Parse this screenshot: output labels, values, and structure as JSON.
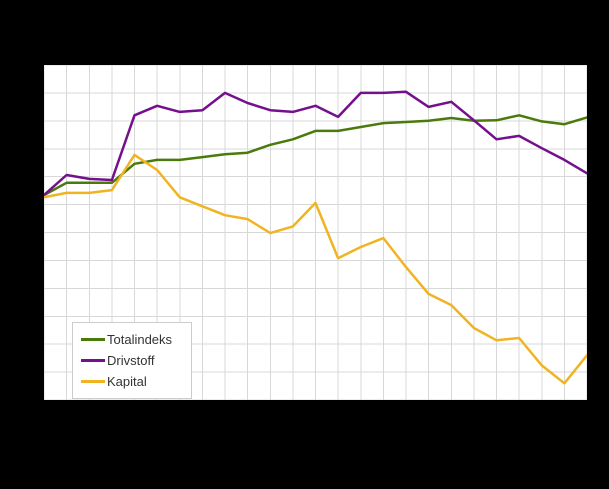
{
  "chart_data": {
    "type": "line",
    "title": "",
    "x_count": 25,
    "x_tick_labels_visible": false,
    "y_tick_labels_visible": false,
    "grid": true,
    "grid_color": "#d8d8d8",
    "plot_background": "#ffffff",
    "page_background": "#000000",
    "legend_position": "inside-bottom-left",
    "ylim": [
      63.3,
      123.3
    ],
    "series": [
      {
        "name": "Totalindeks",
        "color": "#4b7a0c",
        "values": [
          100.0,
          102.2,
          102.2,
          102.2,
          105.6,
          106.3,
          106.3,
          106.8,
          107.3,
          107.6,
          109.0,
          110.0,
          111.5,
          111.5,
          112.2,
          112.9,
          113.1,
          113.3,
          113.8,
          113.3,
          113.4,
          114.3,
          113.2,
          112.7,
          113.9
        ]
      },
      {
        "name": "Drivstoff",
        "color": "#74108c",
        "values": [
          100.0,
          103.6,
          102.9,
          102.7,
          114.3,
          116.0,
          114.9,
          115.2,
          118.3,
          116.5,
          115.2,
          114.9,
          116.0,
          114.0,
          118.3,
          118.3,
          118.5,
          115.8,
          116.7,
          113.4,
          110.0,
          110.6,
          108.4,
          106.3,
          103.9
        ]
      },
      {
        "name": "Kapital",
        "color": "#f0b423",
        "values": [
          99.6,
          100.4,
          100.4,
          100.9,
          107.2,
          104.5,
          99.6,
          98.0,
          96.4,
          95.7,
          93.2,
          94.4,
          98.6,
          88.7,
          90.7,
          92.3,
          87.1,
          82.3,
          80.3,
          76.2,
          74.0,
          74.4,
          69.5,
          66.3,
          71.3
        ]
      }
    ]
  },
  "legend": {
    "items": [
      {
        "label": "Totalindeks"
      },
      {
        "label": "Drivstoff"
      },
      {
        "label": "Kapital"
      }
    ]
  }
}
